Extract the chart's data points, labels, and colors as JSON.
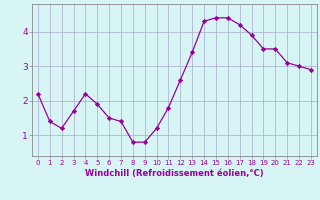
{
  "x": [
    0,
    1,
    2,
    3,
    4,
    5,
    6,
    7,
    8,
    9,
    10,
    11,
    12,
    13,
    14,
    15,
    16,
    17,
    18,
    19,
    20,
    21,
    22,
    23
  ],
  "y": [
    2.2,
    1.4,
    1.2,
    1.7,
    2.2,
    1.9,
    1.5,
    1.4,
    0.8,
    0.8,
    1.2,
    1.8,
    2.6,
    3.4,
    4.3,
    4.4,
    4.4,
    4.2,
    3.9,
    3.5,
    3.5,
    3.1,
    3.0,
    2.9
  ],
  "line_color": "#990099",
  "marker": "D",
  "marker_size": 2.2,
  "bg_color": "#d8f5f5",
  "grid_color": "#aaaacc",
  "xlabel": "Windchill (Refroidissement éolien,°C)",
  "xlim": [
    -0.5,
    23.5
  ],
  "ylim": [
    0.4,
    4.8
  ],
  "yticks": [
    1,
    2,
    3,
    4
  ],
  "xticks": [
    0,
    1,
    2,
    3,
    4,
    5,
    6,
    7,
    8,
    9,
    10,
    11,
    12,
    13,
    14,
    15,
    16,
    17,
    18,
    19,
    20,
    21,
    22,
    23
  ],
  "tick_color": "#990099",
  "tick_fontsize": 5.0,
  "ytick_fontsize": 6.5,
  "xlabel_fontsize": 6.0,
  "axis_color": "#888888",
  "linewidth": 0.9
}
